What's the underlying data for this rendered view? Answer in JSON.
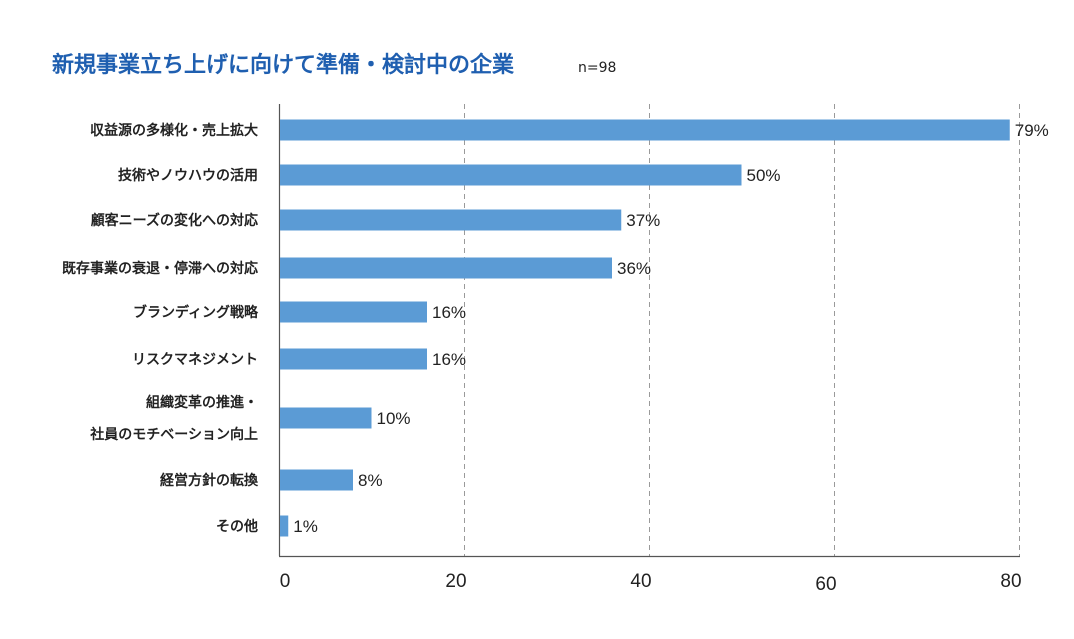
{
  "chart_data": {
    "type": "bar",
    "orientation": "horizontal",
    "title": "新規事業立ち上げに向けて準備・検討中の企業",
    "subtitle": "n=98",
    "categories": [
      [
        "収益源の多様化・売上拡大"
      ],
      [
        "技術やノウハウの活用"
      ],
      [
        "顧客ニーズの変化への対応"
      ],
      [
        "既存事業の衰退・停滞への対応"
      ],
      [
        "ブランディング戦略"
      ],
      [
        "リスクマネジメント"
      ],
      [
        "組織変革の推進・",
        "社員のモチベーション向上"
      ],
      [
        "経営方針の転換"
      ],
      [
        "その他"
      ]
    ],
    "values": [
      79,
      50,
      37,
      36,
      16,
      16,
      10,
      8,
      1
    ],
    "value_labels": [
      "79%",
      "50%",
      "37%",
      "36%",
      "16%",
      "16%",
      "10%",
      "8%",
      "1%"
    ],
    "xlim": [
      0,
      80
    ],
    "x_ticks": [
      0,
      20,
      40,
      60,
      80
    ],
    "x_tick_labels": [
      "0",
      "20",
      "40",
      "60",
      "80"
    ],
    "xlabel": "",
    "ylabel": "",
    "grid": "vertical dashed",
    "legend": "none"
  },
  "colors": {
    "bar": "#5b9bd5",
    "title": "#1f5fb0",
    "text": "#222222",
    "axis": "#555555",
    "grid": "#9a9a9a"
  }
}
